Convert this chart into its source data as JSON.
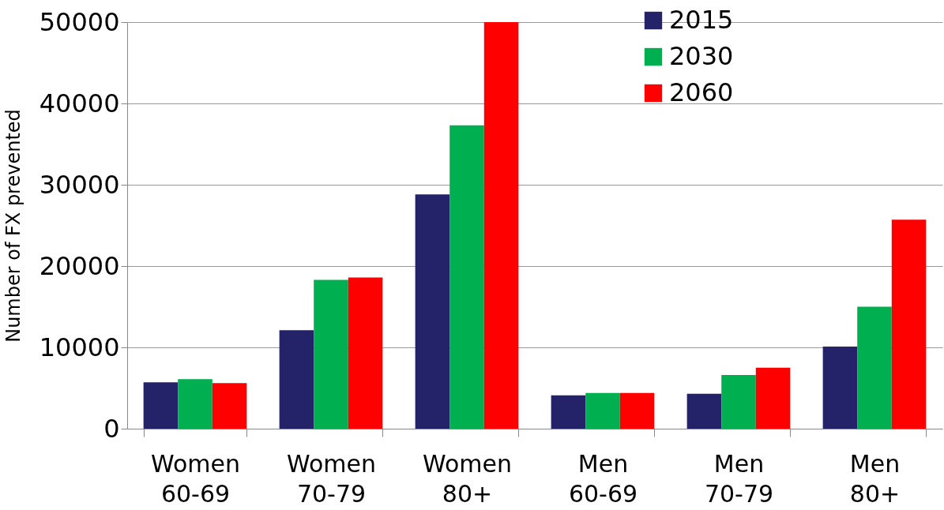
{
  "chart_data": {
    "type": "bar",
    "ylabel": "Number of FX prevented",
    "categories": [
      "Women 60-69",
      "Women 70-79",
      "Women 80+",
      "Men 60-69",
      "Men 70-79",
      "Men 80+"
    ],
    "series": [
      {
        "name": "2015",
        "color": "#24236a",
        "values": [
          5700,
          12100,
          28800,
          4100,
          4300,
          10100
        ]
      },
      {
        "name": "2030",
        "color": "#00b050",
        "values": [
          6100,
          18300,
          37300,
          4400,
          6600,
          15000
        ]
      },
      {
        "name": "2060",
        "color": "#ff0000",
        "values": [
          5600,
          18600,
          50000,
          4400,
          7500,
          25700
        ]
      }
    ],
    "ylim": [
      0,
      50000
    ],
    "yticks": [
      0,
      10000,
      20000,
      30000,
      40000,
      50000
    ],
    "grid": "y",
    "legend": "top right"
  }
}
